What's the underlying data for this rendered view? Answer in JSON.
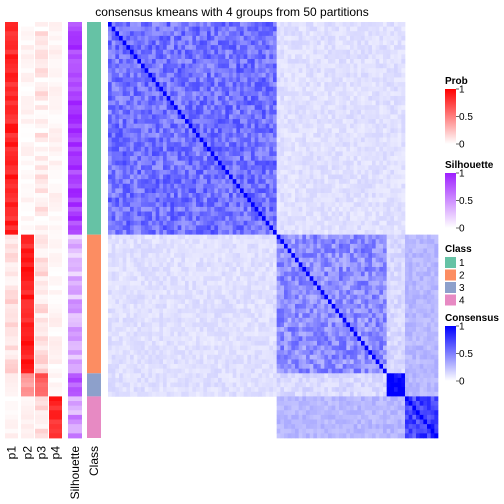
{
  "chart_data": {
    "type": "heatmap",
    "title": "consensus kmeans with 4 groups from 50 partitions",
    "n_samples": 90,
    "annotation_columns": [
      "p1",
      "p2",
      "p3",
      "p4",
      "Silhouette",
      "Class"
    ],
    "groups": [
      {
        "class": "1",
        "count": 46
      },
      {
        "class": "2",
        "count": 30
      },
      {
        "class": "3",
        "count": 5
      },
      {
        "class": "4",
        "count": 9
      }
    ],
    "prob_profiles": [
      {
        "class": "1",
        "p1": 0.85,
        "p2": 0.0,
        "p3": 0.08,
        "p4": 0.0
      },
      {
        "class": "2",
        "p1": 0.12,
        "p2": 0.88,
        "p3": 0.12,
        "p4": 0.0
      },
      {
        "class": "3",
        "p1": 0.0,
        "p2": 0.35,
        "p3": 0.65,
        "p4": 0.0
      },
      {
        "class": "4",
        "p1": 0.0,
        "p2": 0.0,
        "p3": 0.1,
        "p4": 0.85
      }
    ],
    "silhouette_profiles": [
      {
        "class": "1",
        "value": 0.9
      },
      {
        "class": "2",
        "value": 0.35
      },
      {
        "class": "3",
        "value": 0.8
      },
      {
        "class": "4",
        "value": 0.45
      }
    ],
    "consensus_blocks": [
      {
        "class": "1",
        "within": 0.55
      },
      {
        "class": "2",
        "within": 0.45
      },
      {
        "class": "3",
        "within": 1.0
      },
      {
        "class": "4",
        "within": 0.75
      }
    ],
    "legends": [
      {
        "title": "Prob",
        "ticks": [
          "1",
          "0.5",
          "0"
        ],
        "colors": [
          "#ffffff",
          "#ff0000"
        ]
      },
      {
        "title": "Silhouette",
        "ticks": [
          "1",
          "0.5",
          "0"
        ],
        "colors": [
          "#ffffff",
          "#9e1fff"
        ]
      },
      {
        "title": "Class",
        "entries": [
          {
            "label": "1",
            "color": "#66c2a5"
          },
          {
            "label": "2",
            "color": "#fc8d62"
          },
          {
            "label": "3",
            "color": "#8da0cb"
          },
          {
            "label": "4",
            "color": "#e78ac3"
          }
        ]
      },
      {
        "title": "Consensus",
        "ticks": [
          "1",
          "0.5",
          "0"
        ],
        "colors": [
          "#ffffff",
          "#0000ff"
        ]
      }
    ]
  }
}
